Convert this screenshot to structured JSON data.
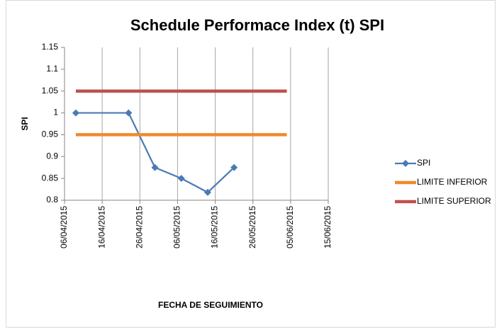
{
  "chart_data": {
    "type": "line",
    "title": "Schedule Performace Index (t) SPI",
    "x_label": "FECHA DE SEGUIMIENTO",
    "y_label": "SPI",
    "xlim": [
      "06/04/2015",
      "15/06/2015"
    ],
    "xticks": [
      "06/04/2015",
      "16/04/2015",
      "26/04/2015",
      "06/05/2015",
      "16/05/2015",
      "26/05/2015",
      "05/06/2015",
      "15/06/2015"
    ],
    "ylim": [
      0.8,
      1.15
    ],
    "yticks": [
      0.8,
      0.85,
      0.9,
      0.95,
      1,
      1.05,
      1.1,
      1.15
    ],
    "grid": "x",
    "legend": "right",
    "series": [
      {
        "name": "SPI",
        "color": "#4a7ab5",
        "marker": "diamond",
        "x": [
          "09/04/2015",
          "23/04/2015",
          "30/04/2015",
          "07/05/2015",
          "14/05/2015",
          "21/05/2015"
        ],
        "values": [
          1,
          1,
          0.875,
          0.85,
          0.818,
          0.875
        ]
      },
      {
        "name": "LIMITE INFERIOR",
        "color": "#ef8a2c",
        "x": [
          "09/04/2015",
          "04/06/2015"
        ],
        "values": [
          0.95,
          0.95
        ]
      },
      {
        "name": "LIMITE SUPERIOR",
        "color": "#c0504d",
        "x": [
          "09/04/2015",
          "04/06/2015"
        ],
        "values": [
          1.05,
          1.05
        ]
      }
    ]
  }
}
